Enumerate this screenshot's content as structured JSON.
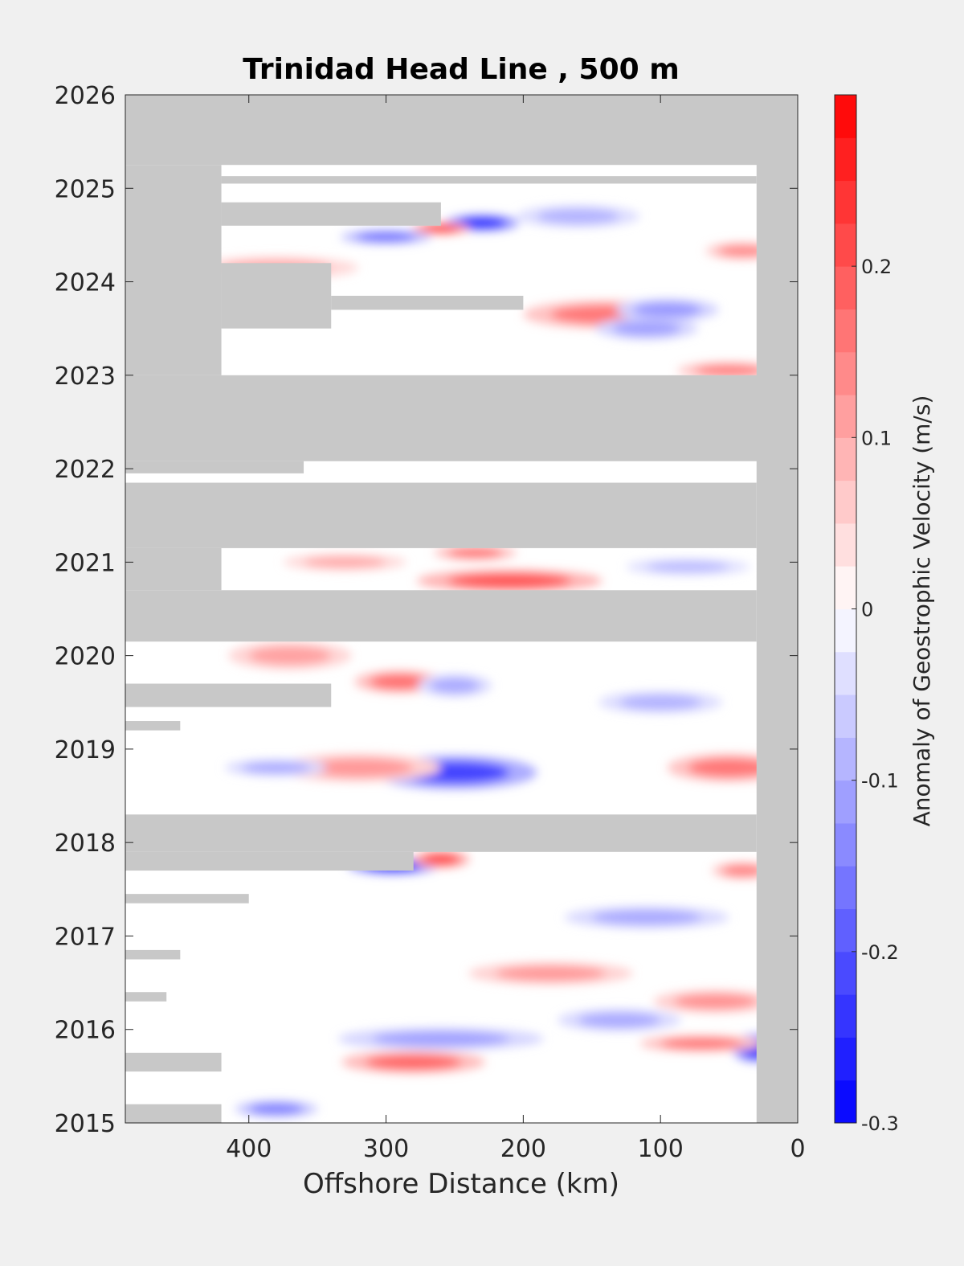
{
  "chart_data": {
    "type": "heatmap",
    "title": "Trinidad Head Line , 500 m",
    "xlabel": "Offshore Distance (km)",
    "ylabel": "",
    "xlim": [
      490,
      0
    ],
    "ylim": [
      2015,
      2026
    ],
    "x_ticks": [
      400,
      300,
      200,
      100,
      0
    ],
    "x_tick_labels": [
      "400",
      "300",
      "200",
      "100",
      "0"
    ],
    "y_ticks": [
      2015,
      2016,
      2017,
      2018,
      2019,
      2020,
      2021,
      2022,
      2023,
      2024,
      2025,
      2026
    ],
    "y_tick_labels": [
      "2015",
      "2016",
      "2017",
      "2018",
      "2019",
      "2020",
      "2021",
      "2022",
      "2023",
      "2024",
      "2025",
      "2026"
    ],
    "colorbar": {
      "label": "Anomaly of Geostrophic Velocity (m/s)",
      "range": [
        -0.3,
        0.3
      ],
      "levels": 24,
      "ticks": [
        -0.3,
        -0.2,
        -0.1,
        0,
        0.1,
        0.2
      ],
      "tick_labels": [
        "-0.3",
        "-0.2",
        "-0.1",
        "0",
        "0.1",
        "0.2"
      ],
      "colormap": "blue-white-red",
      "neg_color": "#0000ff",
      "pos_color": "#ff0000"
    },
    "nodata_color": "#c8c8c8",
    "nodata_bands": [
      {
        "t0": 2025.25,
        "t1": 2026.0,
        "x0": 490,
        "x1": 0
      },
      {
        "t0": 2023.0,
        "t1": 2025.25,
        "x0": 490,
        "x1": 420
      },
      {
        "t0": 2025.05,
        "t1": 2025.13,
        "x0": 420,
        "x1": 30
      },
      {
        "t0": 2024.6,
        "t1": 2024.85,
        "x0": 420,
        "x1": 260
      },
      {
        "t0": 2023.5,
        "t1": 2024.2,
        "x0": 420,
        "x1": 340
      },
      {
        "t0": 2023.7,
        "t1": 2023.85,
        "x0": 340,
        "x1": 200
      },
      {
        "t0": 2022.08,
        "t1": 2023.0,
        "x0": 490,
        "x1": 0
      },
      {
        "t0": 2021.95,
        "t1": 2022.08,
        "x0": 490,
        "x1": 360
      },
      {
        "t0": 2021.15,
        "t1": 2021.85,
        "x0": 490,
        "x1": 30
      },
      {
        "t0": 2020.15,
        "t1": 2020.7,
        "x0": 490,
        "x1": 30
      },
      {
        "t0": 2020.7,
        "t1": 2021.15,
        "x0": 490,
        "x1": 420
      },
      {
        "t0": 2019.45,
        "t1": 2019.7,
        "x0": 490,
        "x1": 340
      },
      {
        "t0": 2019.2,
        "t1": 2019.3,
        "x0": 490,
        "x1": 450
      },
      {
        "t0": 2017.9,
        "t1": 2018.3,
        "x0": 490,
        "x1": 30
      },
      {
        "t0": 2017.7,
        "t1": 2017.9,
        "x0": 490,
        "x1": 280
      },
      {
        "t0": 2017.35,
        "t1": 2017.45,
        "x0": 490,
        "x1": 400
      },
      {
        "t0": 2016.75,
        "t1": 2016.85,
        "x0": 490,
        "x1": 450
      },
      {
        "t0": 2016.3,
        "t1": 2016.4,
        "x0": 490,
        "x1": 460
      },
      {
        "t0": 2015.55,
        "t1": 2015.75,
        "x0": 490,
        "x1": 420
      },
      {
        "t0": 2015.0,
        "t1": 2015.2,
        "x0": 490,
        "x1": 420
      },
      {
        "t0": 2015.0,
        "t1": 2026.0,
        "x0": 30,
        "x1": 0
      }
    ],
    "anomalies": [
      {
        "x": 230,
        "t": 2024.63,
        "value": -0.26,
        "rx": 18,
        "rt": 0.06
      },
      {
        "x": 260,
        "t": 2024.57,
        "value": 0.24,
        "rx": 14,
        "rt": 0.04
      },
      {
        "x": 300,
        "t": 2024.48,
        "value": -0.17,
        "rx": 22,
        "rt": 0.05
      },
      {
        "x": 140,
        "t": 2023.65,
        "value": 0.16,
        "rx": 40,
        "rt": 0.1
      },
      {
        "x": 110,
        "t": 2023.5,
        "value": -0.11,
        "rx": 25,
        "rt": 0.08
      },
      {
        "x": 95,
        "t": 2023.7,
        "value": -0.12,
        "rx": 25,
        "rt": 0.08
      },
      {
        "x": 50,
        "t": 2023.05,
        "value": 0.15,
        "rx": 25,
        "rt": 0.06
      },
      {
        "x": 40,
        "t": 2024.33,
        "value": 0.14,
        "rx": 18,
        "rt": 0.06
      },
      {
        "x": 210,
        "t": 2020.8,
        "value": 0.2,
        "rx": 45,
        "rt": 0.08
      },
      {
        "x": 235,
        "t": 2021.1,
        "value": 0.17,
        "rx": 20,
        "rt": 0.05
      },
      {
        "x": 290,
        "t": 2019.72,
        "value": 0.17,
        "rx": 22,
        "rt": 0.08
      },
      {
        "x": 250,
        "t": 2019.68,
        "value": -0.1,
        "rx": 18,
        "rt": 0.08
      },
      {
        "x": 250,
        "t": 2018.75,
        "value": -0.22,
        "rx": 40,
        "rt": 0.12
      },
      {
        "x": 320,
        "t": 2018.8,
        "value": 0.12,
        "rx": 40,
        "rt": 0.1
      },
      {
        "x": 50,
        "t": 2018.8,
        "value": 0.16,
        "rx": 30,
        "rt": 0.1
      },
      {
        "x": 380,
        "t": 2018.8,
        "value": -0.1,
        "rx": 25,
        "rt": 0.06
      },
      {
        "x": 295,
        "t": 2017.75,
        "value": -0.25,
        "rx": 22,
        "rt": 0.06
      },
      {
        "x": 260,
        "t": 2017.82,
        "value": 0.22,
        "rx": 14,
        "rt": 0.06
      },
      {
        "x": 40,
        "t": 2017.7,
        "value": 0.15,
        "rx": 15,
        "rt": 0.06
      },
      {
        "x": 30,
        "t": 2015.8,
        "value": -0.28,
        "rx": 12,
        "rt": 0.1
      },
      {
        "x": 280,
        "t": 2015.65,
        "value": 0.18,
        "rx": 35,
        "rt": 0.08
      },
      {
        "x": 260,
        "t": 2015.9,
        "value": -0.11,
        "rx": 50,
        "rt": 0.08
      },
      {
        "x": 70,
        "t": 2015.85,
        "value": 0.16,
        "rx": 30,
        "rt": 0.06
      },
      {
        "x": 130,
        "t": 2016.1,
        "value": -0.1,
        "rx": 30,
        "rt": 0.08
      },
      {
        "x": 380,
        "t": 2015.15,
        "value": -0.15,
        "rx": 20,
        "rt": 0.06
      },
      {
        "x": 180,
        "t": 2016.6,
        "value": 0.12,
        "rx": 40,
        "rt": 0.08
      },
      {
        "x": 60,
        "t": 2016.3,
        "value": 0.13,
        "rx": 30,
        "rt": 0.08
      },
      {
        "x": 110,
        "t": 2017.2,
        "value": -0.1,
        "rx": 40,
        "rt": 0.08
      },
      {
        "x": 370,
        "t": 2020.0,
        "value": 0.11,
        "rx": 30,
        "rt": 0.1
      },
      {
        "x": 100,
        "t": 2019.5,
        "value": -0.09,
        "rx": 30,
        "rt": 0.08
      },
      {
        "x": 160,
        "t": 2024.7,
        "value": -0.09,
        "rx": 30,
        "rt": 0.08
      },
      {
        "x": 380,
        "t": 2024.15,
        "value": 0.1,
        "rx": 40,
        "rt": 0.08
      },
      {
        "x": 330,
        "t": 2021.0,
        "value": 0.1,
        "rx": 30,
        "rt": 0.06
      },
      {
        "x": 80,
        "t": 2020.95,
        "value": -0.08,
        "rx": 30,
        "rt": 0.06
      }
    ]
  }
}
